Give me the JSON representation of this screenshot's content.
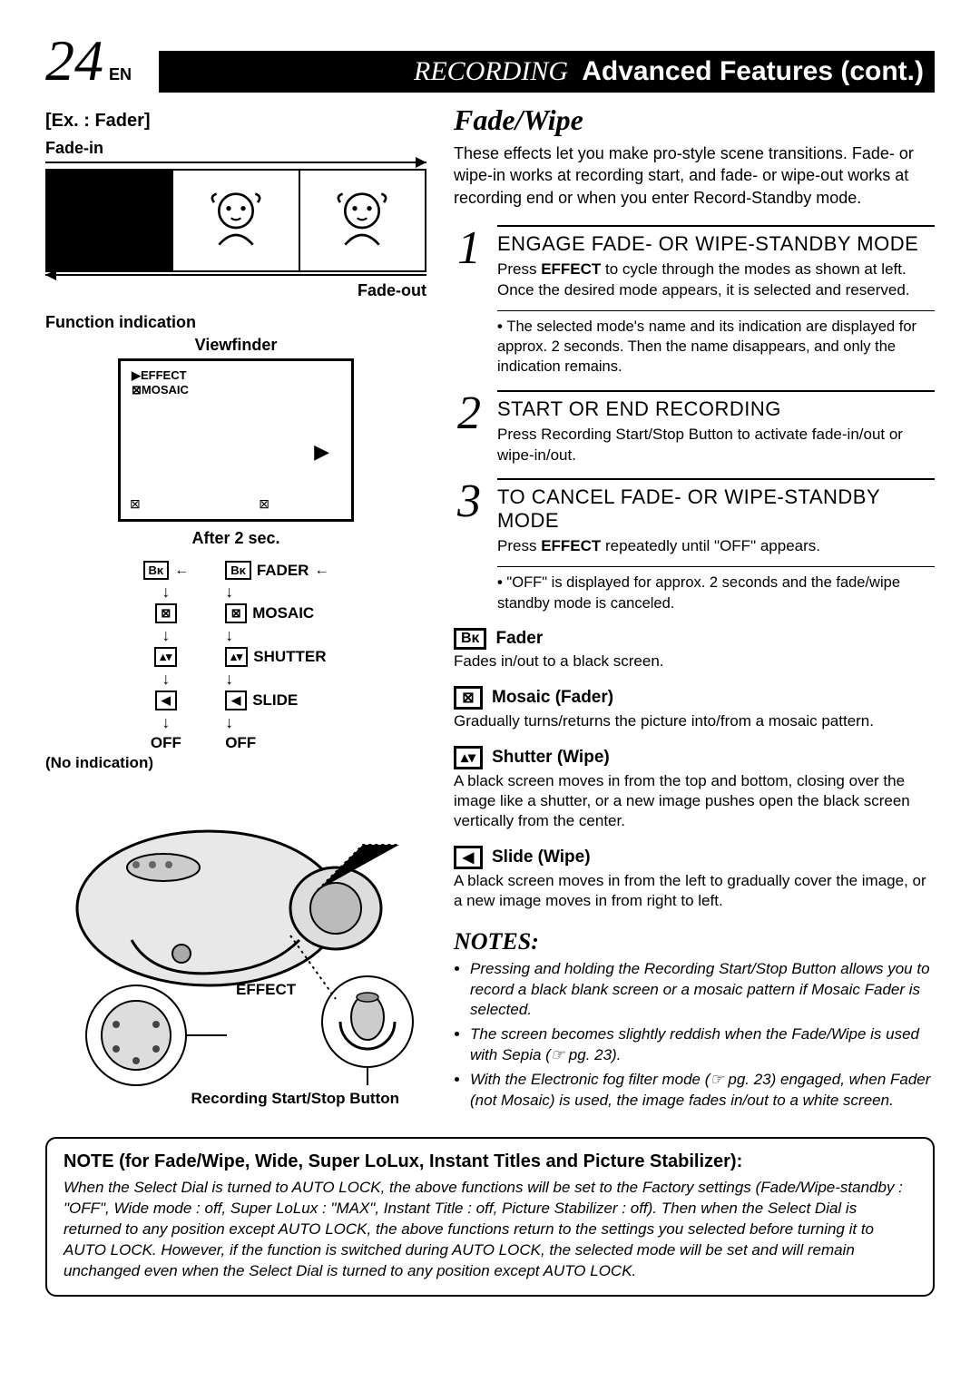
{
  "header": {
    "pageNum": "24",
    "lang": "EN",
    "bannerRec": "RECORDING",
    "bannerRest": "Advanced Features (cont.)"
  },
  "left": {
    "exTitle": "[Ex. : Fader]",
    "fadeIn": "Fade-in",
    "fadeOut": "Fade-out",
    "funcInd": "Function indication",
    "viewfinder": "Viewfinder",
    "vfLine1": "▶EFFECT",
    "vfLine2": "⊠MOSAIC",
    "vfIconL": "⊠",
    "vfIconR": "⊠",
    "vfArrow": "▶",
    "after2": "After 2 sec.",
    "col1": {
      "i1": "Bᴋ",
      "i2": "⊠",
      "i3": "▴▾",
      "i4": "◀",
      "off": "OFF"
    },
    "col2": {
      "i1": {
        "ico": "Bᴋ",
        "txt": "FADER"
      },
      "i2": {
        "ico": "⊠",
        "txt": "MOSAIC"
      },
      "i3": {
        "ico": "▴▾",
        "txt": "SHUTTER"
      },
      "i4": {
        "ico": "◀",
        "txt": "SLIDE"
      },
      "off": "OFF"
    },
    "noInd": "(No indication)",
    "effectLbl": "EFFECT",
    "recBtnLbl": "Recording Start/Stop Button"
  },
  "right": {
    "title": "Fade/Wipe",
    "intro": "These effects let you make pro-style scene transitions. Fade- or wipe-in works at recording start, and fade- or wipe-out works at recording end or when you enter Record-Standby mode.",
    "steps": [
      {
        "n": "1",
        "h": "ENGAGE FADE- OR WIPE-STANDBY MODE",
        "t": "Press <b>EFFECT</b> to cycle through the modes as shown at left. Once the desired mode appears, it is selected and reserved.",
        "b": "The selected mode's name and its indication are displayed for approx. 2 seconds. Then the name disappears, and only the indication remains."
      },
      {
        "n": "2",
        "h": "START OR END RECORDING",
        "t": "Press Recording Start/Stop Button to activate fade-in/out or wipe-in/out."
      },
      {
        "n": "3",
        "h": "TO CANCEL FADE- OR WIPE-STANDBY MODE",
        "t": "Press <b>EFFECT</b> repeatedly until \"OFF\" appears.",
        "b": "\"OFF\" is displayed for approx. 2 seconds and the fade/wipe standby mode is canceled."
      }
    ],
    "effects": [
      {
        "ico": "Bᴋ",
        "name": "Fader",
        "desc": "Fades in/out to a black screen."
      },
      {
        "ico": "⊠",
        "name": "Mosaic (Fader)",
        "desc": "Gradually turns/returns the picture into/from a mosaic pattern."
      },
      {
        "ico": "▴▾",
        "name": "Shutter (Wipe)",
        "desc": "A black screen moves in from the top and bottom, closing over the image like a shutter, or a new image pushes open the black screen vertically from the center."
      },
      {
        "ico": "◀",
        "name": "Slide (Wipe)",
        "desc": "A black screen moves in from the left to gradually cover the image, or a new image moves in from right to left."
      }
    ],
    "notesHdr": "NOTES:",
    "notes": [
      "Pressing and holding the Recording Start/Stop Button allows you to record a black blank screen or a mosaic pattern if Mosaic Fader is selected.",
      "The screen becomes slightly reddish when the Fade/Wipe is used with Sepia (☞ pg. 23).",
      "With the Electronic fog filter mode (☞ pg. 23) engaged, when Fader (not Mosaic) is used, the image fades in/out to a white screen."
    ]
  },
  "notebox": {
    "hdr": "NOTE  (for Fade/Wipe, Wide, Super LoLux, Instant Titles and Picture Stabilizer):",
    "txt": "When the Select Dial is turned to AUTO LOCK, the above functions will be set to the Factory settings (Fade/Wipe-standby : \"OFF\", Wide mode : off, Super LoLux : \"MAX\", Instant Title : off, Picture Stabilizer : off). Then when the Select Dial is returned to any position except AUTO LOCK, the above functions return to the settings you selected before turning it to AUTO LOCK. However, if the function is switched during AUTO LOCK, the selected mode will be set and will remain unchanged even when the Select Dial is turned to any position except AUTO LOCK."
  }
}
